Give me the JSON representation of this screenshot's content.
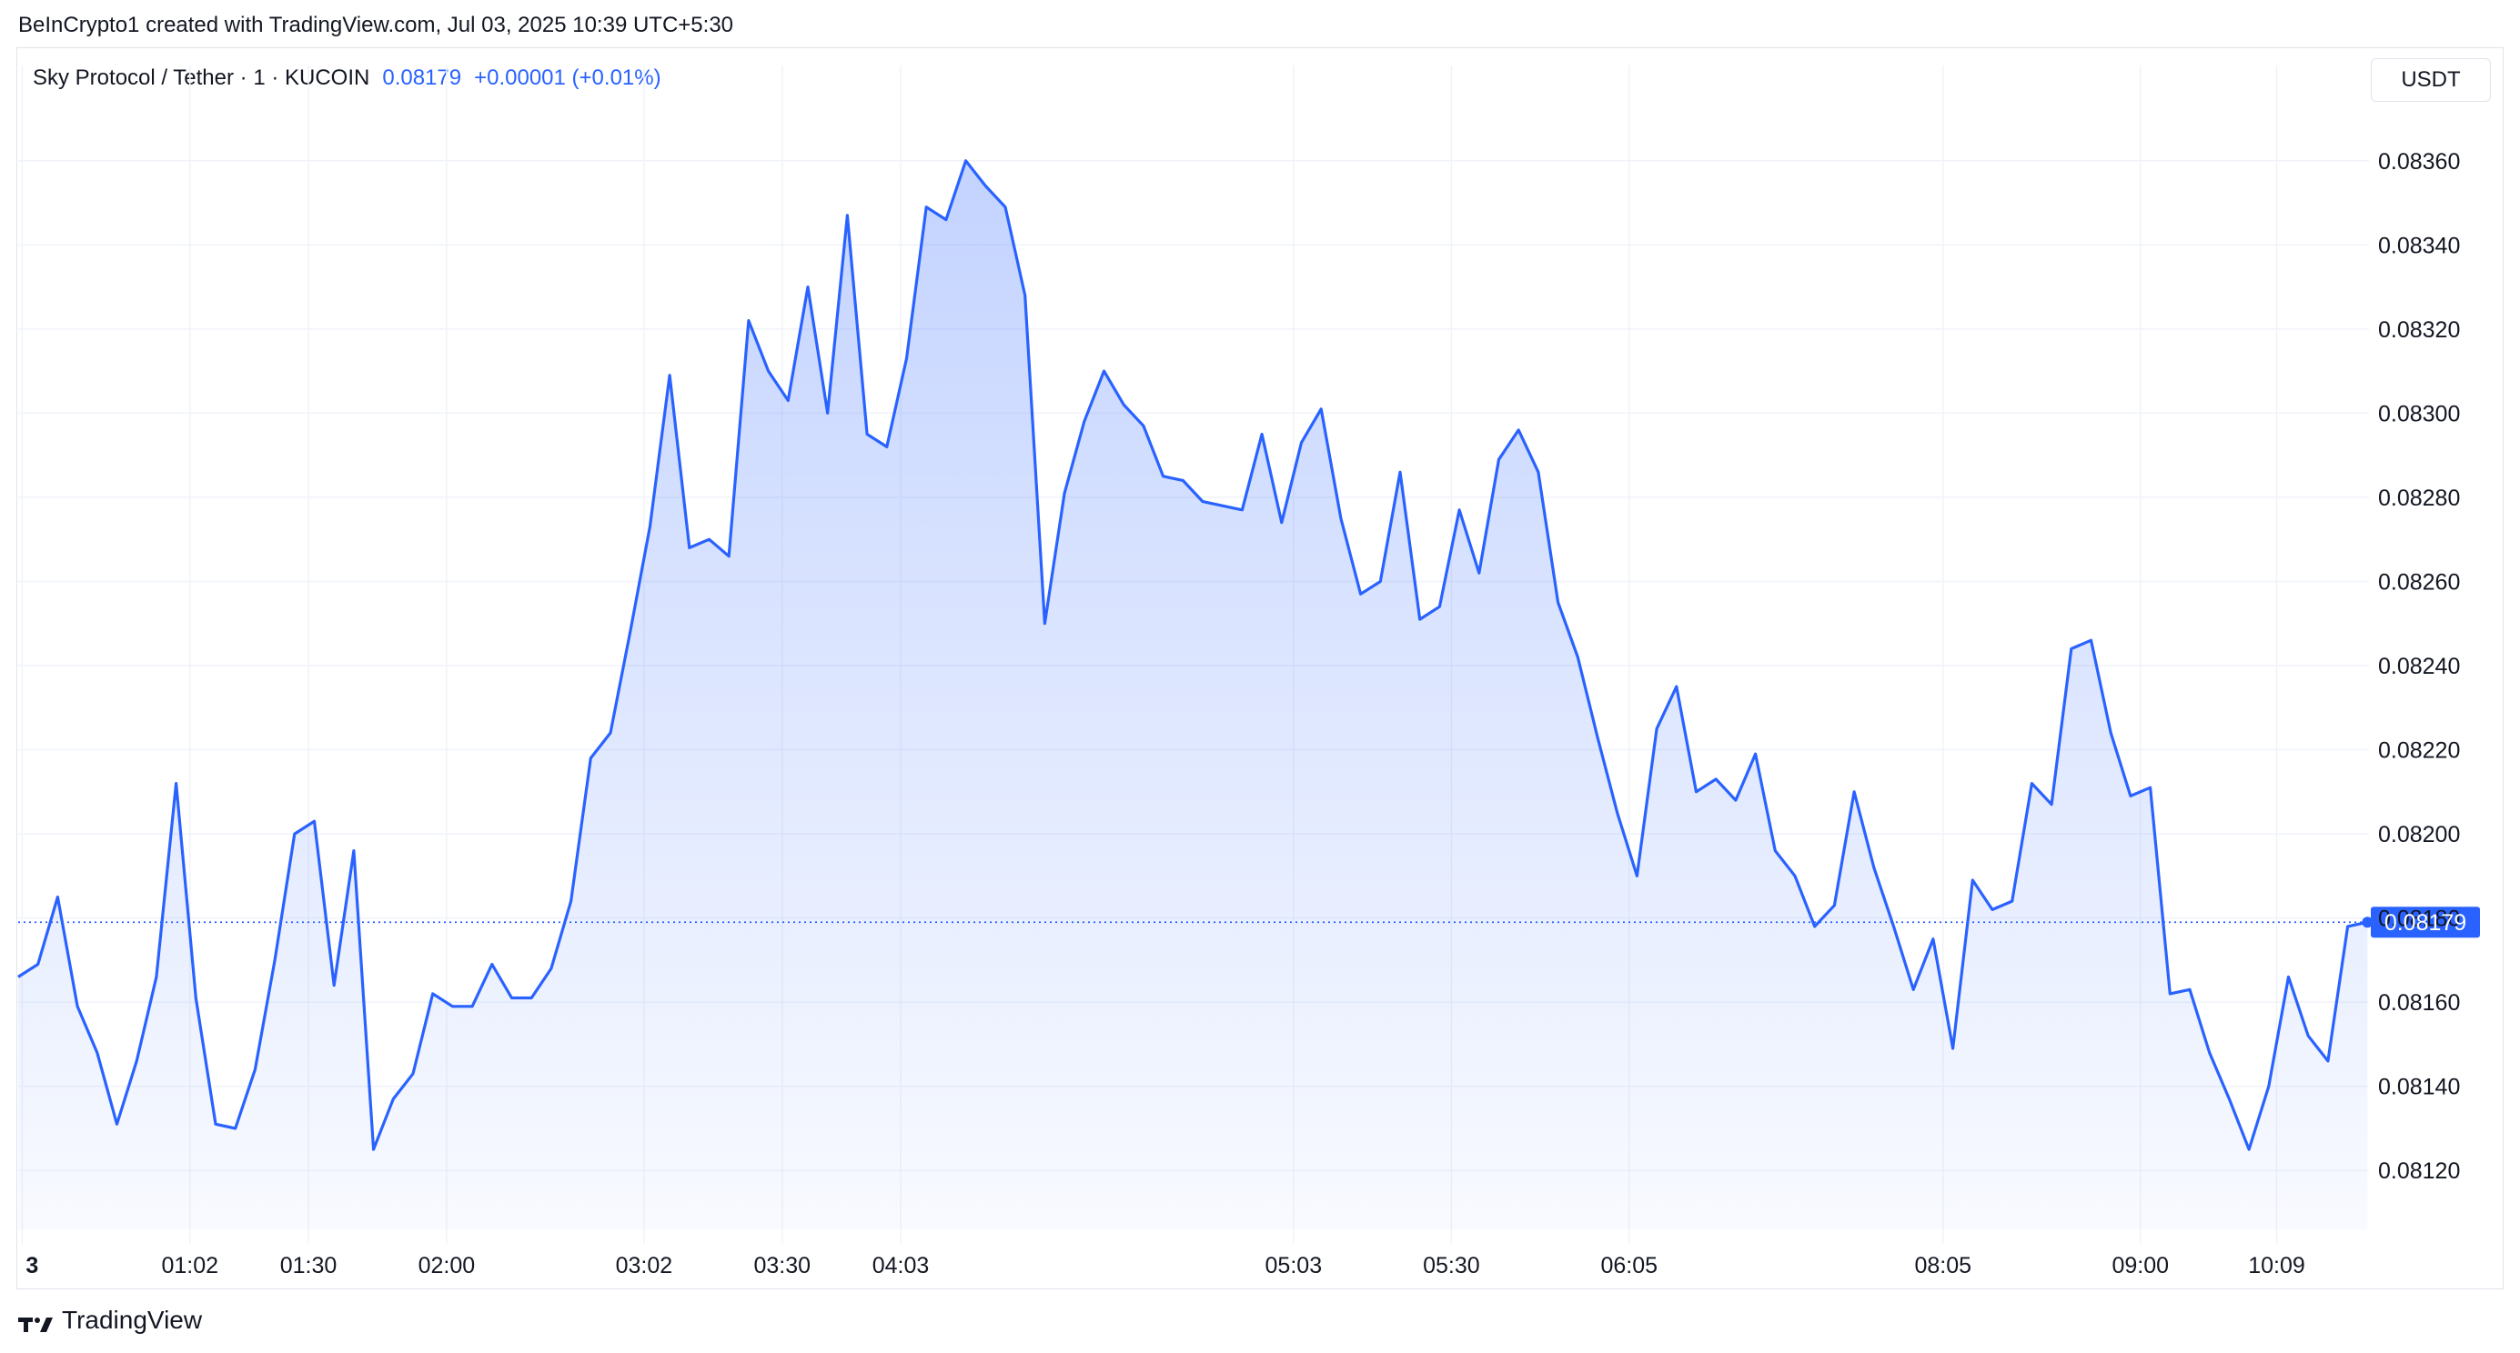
{
  "header": {
    "attribution": "BeInCrypto1 created with TradingView.com, Jul 03, 2025 10:39 UTC+5:30"
  },
  "legend": {
    "symbol": "Sky Protocol / Tether · 1 · KUCOIN",
    "price": "0.08179",
    "change": "+0.00001 (+0.01%)"
  },
  "currency": "USDT",
  "brand": {
    "name": "TradingView",
    "icon": "tradingview-logo-icon"
  },
  "colors": {
    "line": "#2962ff",
    "grid": "#f0f3fa",
    "text": "#131722",
    "price_label_bg": "#2962ff"
  },
  "chart_data": {
    "type": "area",
    "y_tick_labels": [
      "0.08120",
      "0.08140",
      "0.08160",
      "0.08180",
      "0.08200",
      "0.08220",
      "0.08240",
      "0.08260",
      "0.08280",
      "0.08300",
      "0.08320",
      "0.08340",
      "0.08360"
    ],
    "ylim": [
      0.08106,
      0.08374
    ],
    "x_tick_labels": [
      "3",
      "01:02",
      "01:30",
      "02:00",
      "03:02",
      "03:30",
      "04:03",
      "05:03",
      "05:30",
      "06:05",
      "08:05",
      "09:00",
      "10:09"
    ],
    "x_tick_index": [
      0.2,
      8.7,
      14.7,
      21.7,
      31.7,
      38.7,
      44.7,
      64.6,
      72.6,
      81.6,
      97.5,
      107.5,
      114.4
    ],
    "last_price_label": "0.08179",
    "last_price": 0.08179,
    "values": [
      0.08166,
      0.08169,
      0.08185,
      0.08159,
      0.08148,
      0.08131,
      0.08146,
      0.08166,
      0.08212,
      0.08161,
      0.08131,
      0.0813,
      0.08144,
      0.0817,
      0.082,
      0.08203,
      0.08164,
      0.08196,
      0.08125,
      0.08137,
      0.08143,
      0.08162,
      0.08159,
      0.08159,
      0.08169,
      0.08161,
      0.08161,
      0.08168,
      0.08184,
      0.08218,
      0.08224,
      0.08248,
      0.08273,
      0.08309,
      0.08268,
      0.0827,
      0.08266,
      0.08322,
      0.0831,
      0.08303,
      0.0833,
      0.083,
      0.08347,
      0.08295,
      0.08292,
      0.08313,
      0.08349,
      0.08346,
      0.0836,
      0.08354,
      0.08349,
      0.08328,
      0.0825,
      0.08281,
      0.08298,
      0.0831,
      0.08302,
      0.08297,
      0.08285,
      0.08284,
      0.08279,
      0.08278,
      0.08277,
      0.08295,
      0.08274,
      0.08293,
      0.08301,
      0.08275,
      0.08257,
      0.0826,
      0.08286,
      0.08251,
      0.08254,
      0.08277,
      0.08262,
      0.08289,
      0.08296,
      0.08286,
      0.08255,
      0.08242,
      0.08223,
      0.08205,
      0.0819,
      0.08225,
      0.08235,
      0.0821,
      0.08213,
      0.08208,
      0.08219,
      0.08196,
      0.0819,
      0.08178,
      0.08183,
      0.0821,
      0.08192,
      0.08178,
      0.08163,
      0.08175,
      0.08149,
      0.08189,
      0.08182,
      0.08184,
      0.08212,
      0.08207,
      0.08244,
      0.08246,
      0.08224,
      0.08209,
      0.08211,
      0.08162,
      0.08163,
      0.08148,
      0.08137,
      0.08125,
      0.0814,
      0.08166,
      0.08152,
      0.08146,
      0.08178,
      0.08179
    ]
  }
}
